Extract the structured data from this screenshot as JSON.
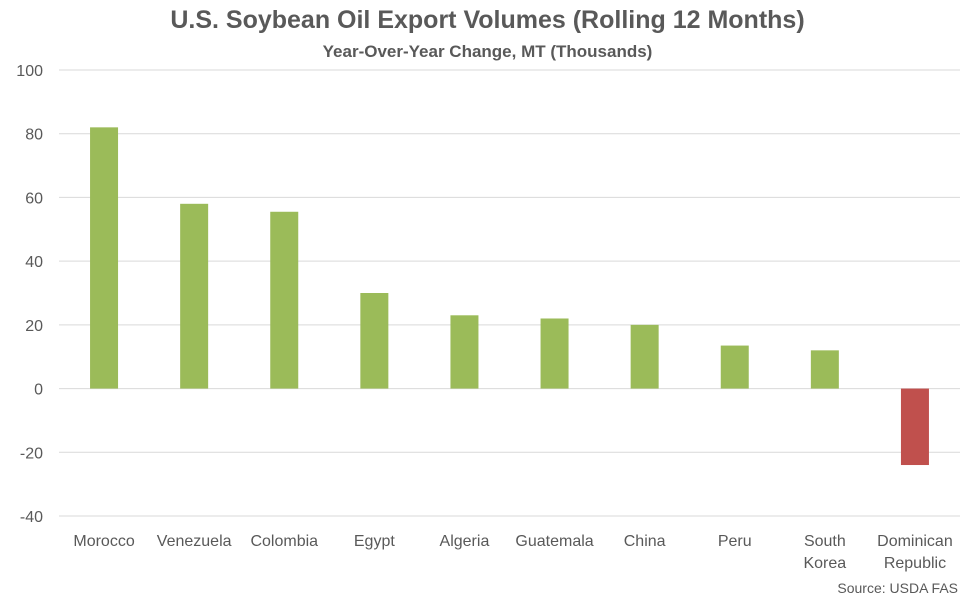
{
  "chart_data": {
    "type": "bar",
    "title": "U.S. Soybean Oil Export Volumes (Rolling 12 Months)",
    "subtitle": "Year-Over-Year Change, MT (Thousands)",
    "categories": [
      [
        "Morocco"
      ],
      [
        "Venezuela"
      ],
      [
        "Colombia"
      ],
      [
        "Egypt"
      ],
      [
        "Algeria"
      ],
      [
        "Guatemala"
      ],
      [
        "China"
      ],
      [
        "Peru"
      ],
      [
        "South",
        "Korea"
      ],
      [
        "Dominican",
        "Republic"
      ]
    ],
    "values": [
      82,
      58,
      55.5,
      30,
      23,
      22,
      20,
      13.5,
      12,
      -24
    ],
    "ylim": [
      -40,
      100
    ],
    "yticks": [
      100,
      80,
      60,
      40,
      20,
      0,
      -20,
      -40
    ],
    "ytick_labels": [
      "100",
      "80",
      "60",
      "40",
      "20",
      "0",
      "-20",
      "-40"
    ],
    "grid": true,
    "colors": {
      "positive": "#9bbb59",
      "negative": "#c0504d",
      "grid": "#d9d9d9",
      "text": "#595959"
    },
    "source": "Source: USDA FAS"
  }
}
